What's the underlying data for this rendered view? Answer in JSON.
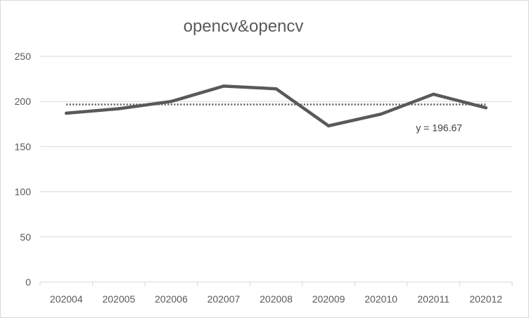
{
  "chart_data": {
    "type": "line",
    "title": "opencv&opencv",
    "xlabel": "",
    "ylabel": "",
    "categories": [
      "202004",
      "202005",
      "202006",
      "202007",
      "202008",
      "202009",
      "202010",
      "202011",
      "202012"
    ],
    "series": [
      {
        "values": [
          187,
          192,
          200,
          217,
          214,
          173,
          186,
          208,
          193
        ],
        "color": "#595959"
      }
    ],
    "trendline": {
      "type": "average",
      "value": 196.67,
      "label": "y = 196.67",
      "color": "#595959"
    },
    "ylim": [
      0,
      250
    ],
    "yticks": [
      "0",
      "50",
      "100",
      "150",
      "200",
      "250"
    ],
    "grid": true,
    "legend": "none",
    "gridline_color": "#d9d9d9"
  }
}
